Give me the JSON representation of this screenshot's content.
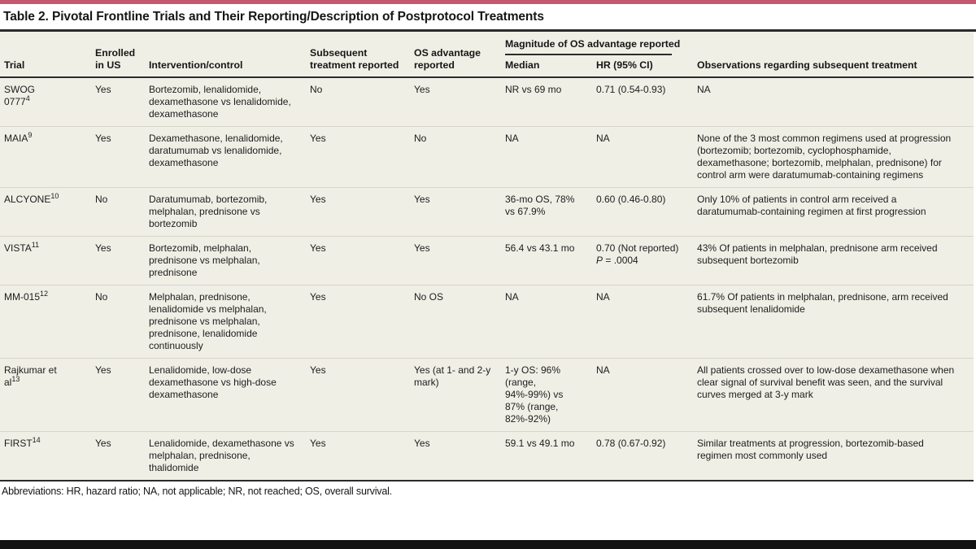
{
  "page": {
    "title": "Table 2. Pivotal Frontline Trials and Their Reporting/Description of Postprotocol Treatments",
    "footnote": "Abbreviations: HR, hazard ratio; NA, not applicable; NR, not reached; OS, overall survival.",
    "colors": {
      "accent_bar": "#c5576e",
      "table_background": "#f0efe6",
      "rule_dark": "#2b2b2b",
      "row_separator": "#d7d5c8",
      "bottom_bar": "#121212"
    }
  },
  "table": {
    "columns": {
      "trial": "Trial",
      "enrolled": "Enrolled in US",
      "intervention": "Intervention/control",
      "subsequent": "Subsequent treatment reported",
      "os_advantage": "OS advantage reported",
      "magnitude_group": "Magnitude of OS advantage reported",
      "median": "Median",
      "hr": "HR (95% CI)",
      "observations": "Observations regarding subsequent treatment"
    },
    "rows": [
      {
        "trial": "SWOG 0777",
        "ref": "4",
        "enrolled": "Yes",
        "intervention": "Bortezomib, lenalidomide, dexamethasone vs lenalidomide, dexamethasone",
        "subsequent": "No",
        "os_advantage": "Yes",
        "median": "NR vs 69 mo",
        "hr": "0.71 (0.54-0.93)",
        "observations": "NA"
      },
      {
        "trial": "MAIA",
        "ref": "9",
        "enrolled": "Yes",
        "intervention": "Dexamethasone, lenalidomide, daratumumab vs lenalidomide, dexamethasone",
        "subsequent": "Yes",
        "os_advantage": "No",
        "median": "NA",
        "hr": "NA",
        "observations": "None of the 3 most common regimens used at progression (bortezomib; bortezomib, cyclophosphamide, dexamethasone; bortezomib, melphalan, prednisone) for control arm were daratumumab-containing regimens"
      },
      {
        "trial": "ALCYONE",
        "ref": "10",
        "enrolled": "No",
        "intervention": "Daratumumab, bortezomib, melphalan, prednisone vs bortezomib",
        "subsequent": "Yes",
        "os_advantage": "Yes",
        "median": "36-mo OS, 78% vs 67.9%",
        "hr": "0.60 (0.46-0.80)",
        "observations": "Only 10% of patients in control arm received a daratumumab-containing regimen at first progression"
      },
      {
        "trial": "VISTA",
        "ref": "11",
        "enrolled": "Yes",
        "intervention": "Bortezomib, melphalan, prednisone vs melphalan, prednisone",
        "subsequent": "Yes",
        "os_advantage": "Yes",
        "median": "56.4 vs 43.1 mo",
        "hr": "0.70 (Not reported)",
        "hr_p_label": "P",
        "hr_p_value": " = .0004",
        "observations": "43% Of patients in melphalan, prednisone arm received subsequent bortezomib"
      },
      {
        "trial": "MM-015",
        "ref": "12",
        "enrolled": "No",
        "intervention": "Melphalan, prednisone, lenalidomide vs melphalan, prednisone vs melphalan, prednisone, lenalidomide continuously",
        "subsequent": "Yes",
        "os_advantage": "No OS",
        "median": "NA",
        "hr": "NA",
        "observations": "61.7% Of patients in melphalan, prednisone, arm received subsequent lenalidomide"
      },
      {
        "trial": "Rajkumar et al",
        "ref": "13",
        "enrolled": "Yes",
        "intervention": "Lenalidomide, low-dose dexamethasone vs high-dose dexamethasone",
        "subsequent": "Yes",
        "os_advantage": "Yes (at 1- and 2-y mark)",
        "median": "1-y OS: 96% (range, 94%-99%) vs 87% (range, 82%-92%)",
        "hr": "NA",
        "observations": "All patients crossed over to low-dose dexamethasone when clear signal of survival benefit was seen, and the survival curves merged at 3-y mark"
      },
      {
        "trial": "FIRST",
        "ref": "14",
        "enrolled": "Yes",
        "intervention": "Lenalidomide, dexamethasone vs melphalan, prednisone, thalidomide",
        "subsequent": "Yes",
        "os_advantage": "Yes",
        "median": "59.1 vs 49.1 mo",
        "hr": "0.78 (0.67-0.92)",
        "observations": "Similar treatments at progression, bortezomib-based regimen most commonly used"
      }
    ]
  }
}
